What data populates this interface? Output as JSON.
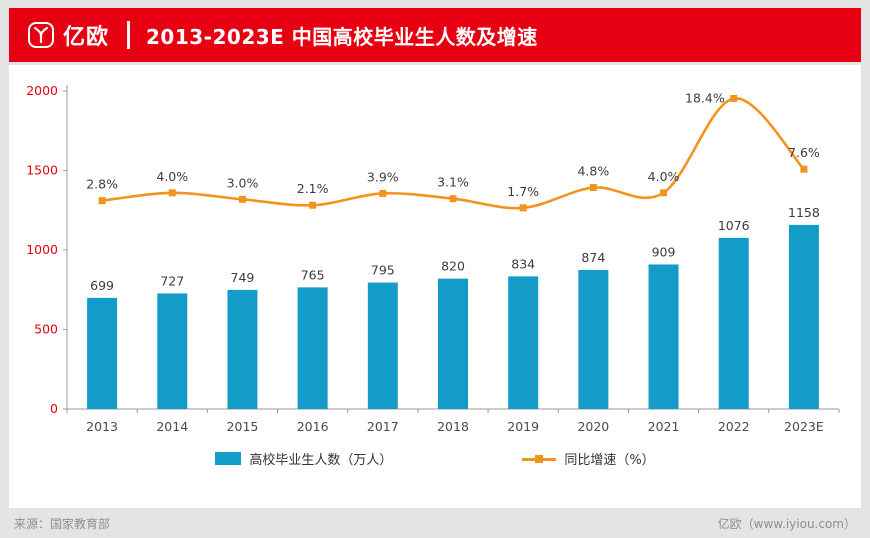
{
  "header": {
    "logo_text": "亿欧",
    "title": "2013-2023E 中国高校毕业生人数及增速"
  },
  "chart_data": {
    "type": "bar",
    "combo": "bar+line",
    "title": "2013-2023E 中国高校毕业生人数及增速",
    "categories": [
      "2013",
      "2014",
      "2015",
      "2016",
      "2017",
      "2018",
      "2019",
      "2020",
      "2021",
      "2022",
      "2023E"
    ],
    "series": [
      {
        "name": "高校毕业生人数（万人）",
        "type": "bar",
        "values": [
          699,
          727,
          749,
          765,
          795,
          820,
          834,
          874,
          909,
          1076,
          1158
        ]
      },
      {
        "name": "同比增速（%）",
        "type": "line",
        "values": [
          2.8,
          4.0,
          3.0,
          2.1,
          3.9,
          3.1,
          1.7,
          4.8,
          4.0,
          18.4,
          7.6
        ],
        "labels": [
          "2.8%",
          "4.0%",
          "3.0%",
          "2.1%",
          "3.9%",
          "3.1%",
          "1.7%",
          "4.8%",
          "4.0%",
          "18.4%",
          "7.6%"
        ]
      }
    ],
    "xlabel": "",
    "ylabel": "",
    "ylim": [
      0,
      2000
    ],
    "yticks": [
      0,
      500,
      1000,
      1500,
      2000
    ],
    "grid": false,
    "legend_position": "bottom"
  },
  "footer": {
    "source": "来源：国家教育部",
    "credit": "亿欧（www.iyiou.com）"
  },
  "colors": {
    "accent_red": "#E60012",
    "bar_blue": "#149CC8",
    "line_orange": "#F3931F",
    "label_dark": "#3D3D3D",
    "axis_gray": "#9A9A9A",
    "footer_gray": "#8F8F8F",
    "page_bg": "#E4E4E4"
  }
}
